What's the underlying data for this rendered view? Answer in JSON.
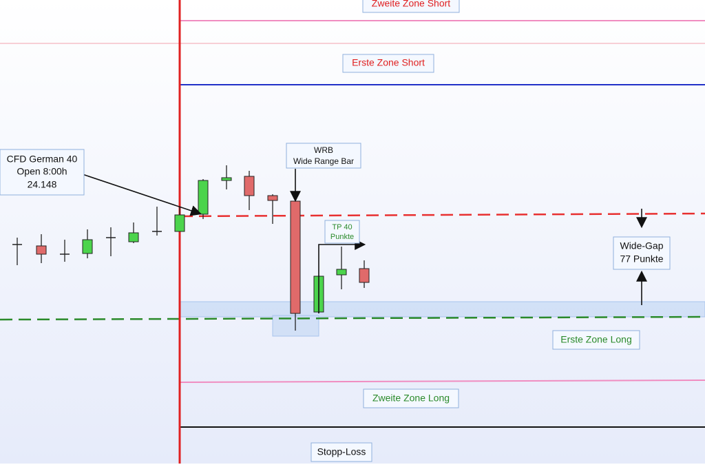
{
  "labels": {
    "zweite_zone_short": "Zweite Zone Short",
    "erste_zone_short": "Erste Zone Short",
    "cfd": [
      "CFD German 40",
      "Open 8:00h",
      "24.148"
    ],
    "wrb": [
      "WRB",
      "Wide Range Bar"
    ],
    "tp": [
      "TP 40",
      "Punkte"
    ],
    "wide_gap": [
      "Wide-Gap",
      "77 Punkte"
    ],
    "erste_zone_long": "Erste Zone Long",
    "zweite_zone_long": "Zweite Zone Long",
    "stopp_loss": "Stopp-Loss"
  }
}
